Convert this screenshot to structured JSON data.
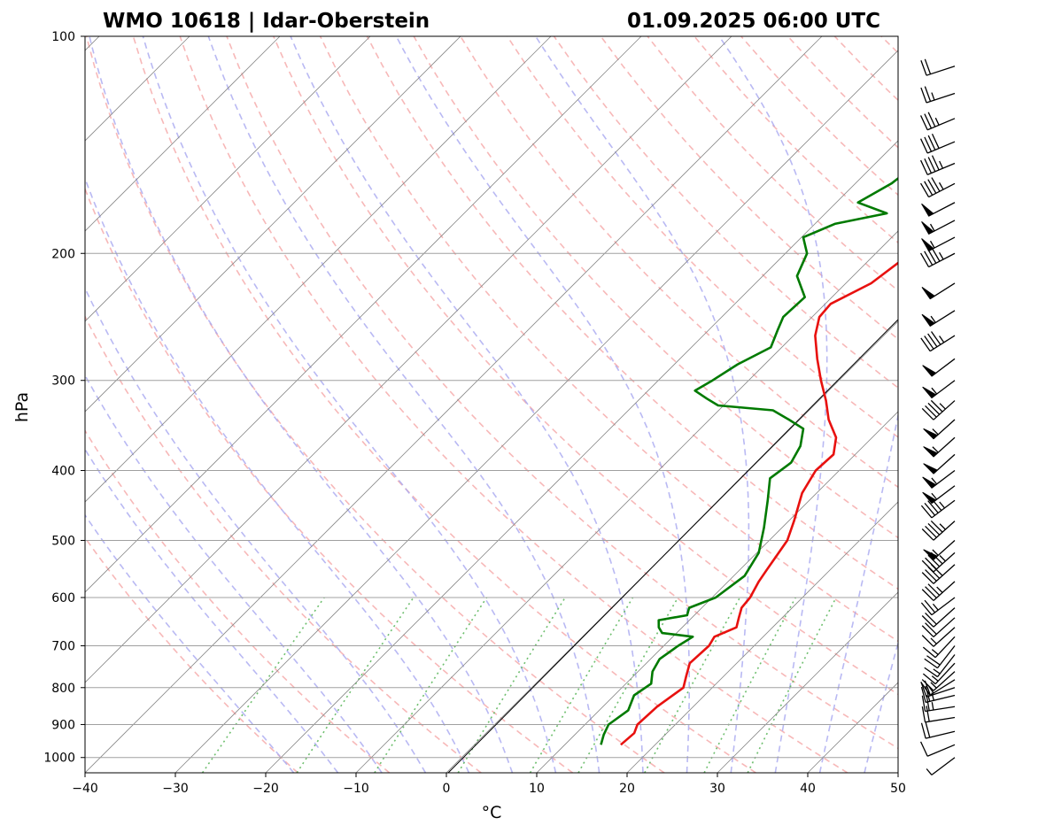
{
  "chart_data": {
    "type": "line",
    "title_left": "WMO 10618 | Idar-Oberstein",
    "title_right": "01.09.2025 06:00 UTC",
    "xlabel": "°C",
    "ylabel": "hPa",
    "xlim": [
      -40,
      50
    ],
    "ylim": [
      1050,
      100
    ],
    "y_scale": "log",
    "skew_t": true,
    "grid": true,
    "x_ticks": [
      "−40",
      "−30",
      "−20",
      "−10",
      "0",
      "10",
      "20",
      "30",
      "40",
      "50"
    ],
    "y_ticks": [
      "100",
      "200",
      "300",
      "400",
      "500",
      "600",
      "700",
      "800",
      "900",
      "1000"
    ],
    "colors": {
      "temperature": "#e8110f",
      "dewpoint": "#007a00",
      "dry_adiabats": "#f4a0a0",
      "moist_adiabats": "#a8a8f0",
      "mixing_ratio": "#5fb85f",
      "isotherms": "#888888",
      "parcel_path": "#000000"
    },
    "series": [
      {
        "role": "temperature",
        "points": [
          [
            960,
            16.2
          ],
          [
            925,
            16.4
          ],
          [
            900,
            15.8
          ],
          [
            850,
            16.0
          ],
          [
            800,
            16.8
          ],
          [
            770,
            15.8
          ],
          [
            740,
            14.8
          ],
          [
            700,
            15.0
          ],
          [
            680,
            14.6
          ],
          [
            660,
            16.0
          ],
          [
            640,
            15.2
          ],
          [
            620,
            14.4
          ],
          [
            600,
            14.2
          ],
          [
            570,
            13.4
          ],
          [
            550,
            13.0
          ],
          [
            500,
            12.0
          ],
          [
            470,
            10.6
          ],
          [
            430,
            8.4
          ],
          [
            400,
            7.4
          ],
          [
            380,
            7.6
          ],
          [
            360,
            6.0
          ],
          [
            340,
            3.2
          ],
          [
            320,
            0.8
          ],
          [
            300,
            -2.0
          ],
          [
            280,
            -4.8
          ],
          [
            260,
            -7.6
          ],
          [
            245,
            -9.2
          ],
          [
            235,
            -9.4
          ],
          [
            220,
            -7.2
          ],
          [
            205,
            -6.4
          ],
          [
            195,
            -6.0
          ],
          [
            185,
            -4.0
          ],
          [
            175,
            -2.2
          ],
          [
            165,
            0.6
          ],
          [
            155,
            1.4
          ],
          [
            145,
            2.4
          ],
          [
            135,
            3.8
          ],
          [
            125,
            6.0
          ],
          [
            118,
            6.6
          ],
          [
            112,
            8.0
          ],
          [
            105,
            10.4
          ],
          [
            100,
            10.6
          ]
        ]
      },
      {
        "role": "dewpoint",
        "points": [
          [
            960,
            14.0
          ],
          [
            930,
            13.2
          ],
          [
            900,
            12.6
          ],
          [
            860,
            13.2
          ],
          [
            820,
            12.2
          ],
          [
            790,
            12.8
          ],
          [
            760,
            11.6
          ],
          [
            730,
            11.0
          ],
          [
            700,
            11.6
          ],
          [
            680,
            12.2
          ],
          [
            672,
            8.4
          ],
          [
            660,
            7.4
          ],
          [
            645,
            6.6
          ],
          [
            635,
            9.2
          ],
          [
            620,
            8.6
          ],
          [
            600,
            10.4
          ],
          [
            560,
            11.2
          ],
          [
            520,
            10.2
          ],
          [
            480,
            8.0
          ],
          [
            440,
            5.4
          ],
          [
            410,
            3.2
          ],
          [
            390,
            3.8
          ],
          [
            370,
            3.0
          ],
          [
            350,
            1.4
          ],
          [
            340,
            -1.2
          ],
          [
            330,
            -4.0
          ],
          [
            325,
            -10.6
          ],
          [
            318,
            -12.6
          ],
          [
            310,
            -14.8
          ],
          [
            300,
            -14.0
          ],
          [
            285,
            -13.0
          ],
          [
            270,
            -11.2
          ],
          [
            255,
            -12.4
          ],
          [
            245,
            -13.2
          ],
          [
            230,
            -13.0
          ],
          [
            215,
            -16.2
          ],
          [
            200,
            -17.6
          ],
          [
            190,
            -19.8
          ],
          [
            182,
            -17.8
          ],
          [
            176,
            -13.2
          ],
          [
            170,
            -17.6
          ],
          [
            160,
            -16.0
          ],
          [
            148,
            -15.2
          ],
          [
            138,
            -13.8
          ],
          [
            128,
            -12.4
          ],
          [
            118,
            -10.4
          ],
          [
            108,
            -8.2
          ],
          [
            100,
            -6.0
          ]
        ]
      }
    ],
    "parcel_path": {
      "points": [
        [
          1050,
          0.2
        ],
        [
          660,
          16.0
        ],
        [
          100,
          16.0
        ]
      ]
    },
    "wind_barbs": {
      "levels": [
        1000,
        960,
        920,
        880,
        850,
        820,
        800,
        780,
        760,
        740,
        720,
        700,
        680,
        660,
        640,
        620,
        600,
        570,
        540,
        520,
        500,
        470,
        440,
        420,
        400,
        380,
        360,
        340,
        320,
        300,
        280,
        260,
        240,
        220,
        200,
        190,
        180,
        170,
        160,
        150,
        140,
        130,
        120,
        110
      ],
      "speed_kt": [
        5,
        10,
        20,
        20,
        25,
        25,
        20,
        15,
        15,
        15,
        15,
        20,
        15,
        15,
        20,
        20,
        25,
        35,
        40,
        45,
        55,
        45,
        45,
        55,
        55,
        50,
        55,
        55,
        45,
        55,
        50,
        45,
        55,
        50,
        45,
        55,
        55,
        50,
        45,
        45,
        40,
        35,
        25,
        20
      ],
      "direction_deg": [
        230,
        245,
        255,
        260,
        260,
        255,
        250,
        235,
        225,
        220,
        215,
        215,
        220,
        225,
        225,
        225,
        230,
        225,
        225,
        225,
        225,
        225,
        230,
        230,
        230,
        225,
        225,
        225,
        225,
        230,
        230,
        235,
        235,
        235,
        240,
        240,
        240,
        240,
        240,
        245,
        245,
        245,
        250,
        250
      ]
    }
  }
}
